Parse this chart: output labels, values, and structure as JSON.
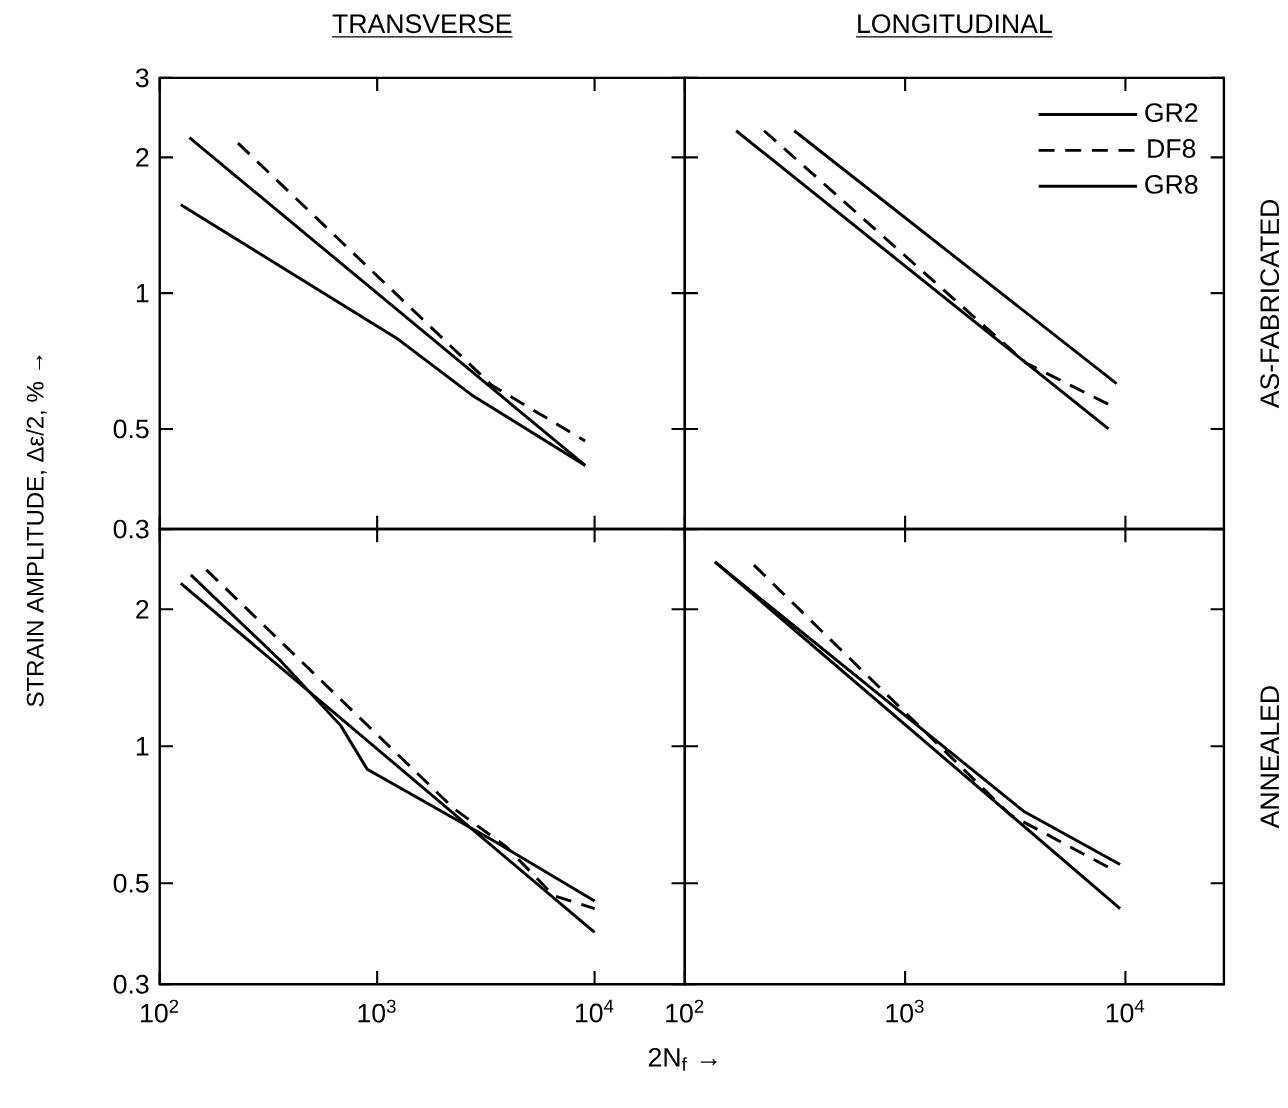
{
  "chart_data": [
    {
      "type": "line",
      "title": "TRANSVERSE",
      "ylabel": "STRAIN AMPLITUDE, Δε/2, % →",
      "log": "xy",
      "xlim": [
        100,
        26000
      ],
      "ylim": [
        0.3,
        3
      ],
      "xticks": [
        {
          "value": 100,
          "label": null
        },
        {
          "value": 1000,
          "label": null
        },
        {
          "value": 10000,
          "label": null
        }
      ],
      "yticks": [
        0.3,
        0.5,
        1,
        2,
        3
      ],
      "tick_labels": "y",
      "series": [
        {
          "color": "#000000",
          "line_style": "solid",
          "x": [
            137,
            9050
          ],
          "values": [
            2.21,
            0.415
          ]
        },
        {
          "color": "#000000",
          "line_style": "dashed",
          "x": [
            229,
            3365,
            9050
          ],
          "values": [
            2.15,
            0.625,
            0.47
          ]
        },
        {
          "color": "#000000",
          "line_style": "solid",
          "x": [
            125,
            1250,
            2720,
            9050
          ],
          "values": [
            1.57,
            0.79,
            0.595,
            0.415
          ]
        }
      ]
    },
    {
      "type": "line",
      "title": "LONGITUDINAL",
      "annotations": [
        "AS-FABRICATED"
      ],
      "log": "xy",
      "xlim": [
        100,
        28000
      ],
      "ylim": [
        0.3,
        3
      ],
      "xticks": [
        {
          "value": 100,
          "label": null
        },
        {
          "value": 1000,
          "label": null
        },
        {
          "value": 10000,
          "label": null
        }
      ],
      "yticks": [
        {
          "value": 0.3,
          "label": null
        },
        {
          "value": 0.5,
          "label": null
        },
        {
          "value": 1,
          "label": null
        },
        {
          "value": 2,
          "label": null
        },
        {
          "value": 3,
          "label": null
        }
      ],
      "tick_labels": false,
      "legend": "top right",
      "series": [
        {
          "name": "GR2",
          "color": "#000000",
          "line_style": "solid",
          "x": [
            171,
            8380
          ],
          "values": [
            2.29,
            0.5
          ]
        },
        {
          "name": "DF8",
          "color": "#000000",
          "line_style": "dashed",
          "x": [
            229,
            3540,
            8810
          ],
          "values": [
            2.29,
            0.7,
            0.56
          ]
        },
        {
          "name": "GR8",
          "color": "#000000",
          "line_style": "solid",
          "x": [
            314,
            9120
          ],
          "values": [
            2.29,
            0.63
          ]
        }
      ]
    },
    {
      "type": "line",
      "xlabel": "2N$_{f}$ →",
      "log": "xy",
      "xlim": [
        100,
        26000
      ],
      "ylim": [
        0.3,
        3
      ],
      "xticks": [
        {
          "value": 100,
          "label": "10$^{2}$"
        },
        {
          "value": 1000,
          "label": "10$^{3}$"
        },
        {
          "value": 10000,
          "label": "10$^{4}$"
        }
      ],
      "yticks": [
        0.3,
        0.5,
        1,
        2
      ],
      "series": [
        {
          "color": "#000000",
          "line_style": "solid",
          "x": [
            125,
            10000
          ],
          "values": [
            2.28,
            0.39
          ]
        },
        {
          "color": "#000000",
          "line_style": "dashed",
          "x": [
            164,
            2250,
            3950,
            6470,
            10000
          ],
          "values": [
            2.44,
            0.73,
            0.6,
            0.47,
            0.44
          ]
        },
        {
          "color": "#000000",
          "line_style": "solid",
          "x": [
            139,
            360,
            680,
            900,
            3430,
            10000
          ],
          "values": [
            2.38,
            1.54,
            1.11,
            0.89,
            0.62,
            0.457
          ]
        }
      ]
    },
    {
      "type": "line",
      "annotations": [
        "ANNEALED"
      ],
      "log": "xy",
      "xlim": [
        100,
        28000
      ],
      "ylim": [
        0.3,
        3
      ],
      "xticks": [
        {
          "value": 100,
          "label": "10$^{2}$"
        },
        {
          "value": 1000,
          "label": "10$^{3}$"
        },
        {
          "value": 10000,
          "label": "10$^{4}$"
        }
      ],
      "yticks": [
        {
          "value": 0.3,
          "label": null
        },
        {
          "value": 0.5,
          "label": null
        },
        {
          "value": 1,
          "label": null
        },
        {
          "value": 2,
          "label": null
        }
      ],
      "tick_labels": "x",
      "series": [
        {
          "color": "#000000",
          "line_style": "solid",
          "x": [
            137,
            9460
          ],
          "values": [
            2.54,
            0.44
          ]
        },
        {
          "color": "#000000",
          "line_style": "dashed",
          "x": [
            206,
            3000,
            9120
          ],
          "values": [
            2.5,
            0.707,
            0.53
          ]
        },
        {
          "color": "#000000",
          "line_style": "solid",
          "x": [
            137,
            3450,
            9460
          ],
          "values": [
            2.54,
            0.72,
            0.55
          ]
        }
      ]
    }
  ]
}
